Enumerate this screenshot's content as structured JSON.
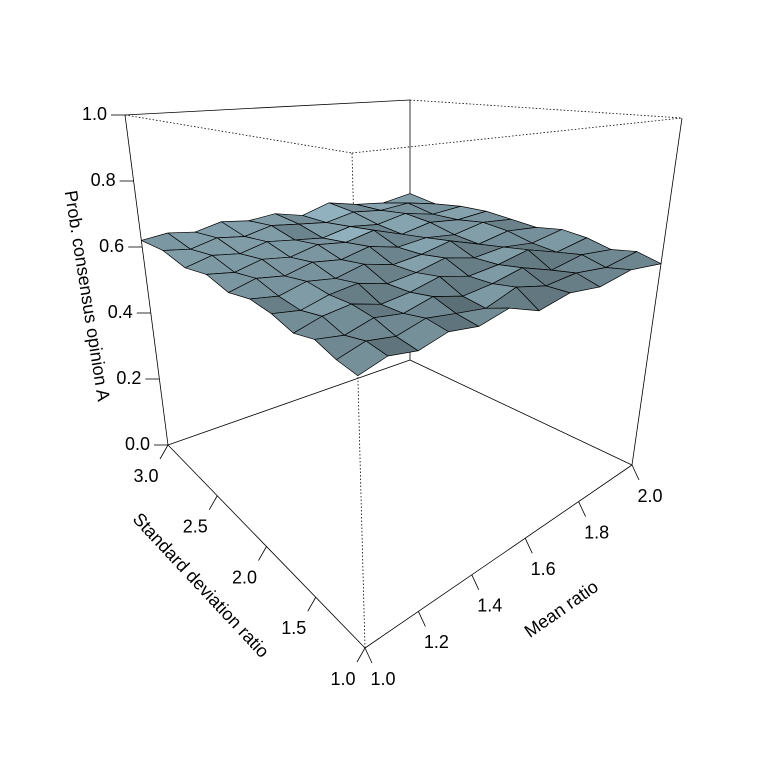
{
  "chart_data": {
    "type": "surface",
    "xlabel": "Mean ratio",
    "ylabel": "Standard deviation ratio",
    "zlabel": "Prob. consensus opinion A",
    "x": [
      1.0,
      1.1,
      1.2,
      1.3,
      1.4,
      1.5,
      1.6,
      1.7,
      1.8,
      1.9,
      2.0
    ],
    "y": [
      1.0,
      1.2,
      1.4,
      1.6,
      1.8,
      2.0,
      2.2,
      2.4,
      2.6,
      2.8,
      3.0
    ],
    "z": [
      [
        0.55,
        0.57,
        0.56,
        0.58,
        0.57,
        0.59,
        0.56,
        0.58,
        0.57,
        0.59,
        0.58
      ],
      [
        0.56,
        0.58,
        0.57,
        0.59,
        0.58,
        0.57,
        0.6,
        0.58,
        0.59,
        0.58,
        0.6
      ],
      [
        0.58,
        0.57,
        0.59,
        0.58,
        0.6,
        0.58,
        0.59,
        0.61,
        0.58,
        0.6,
        0.59
      ],
      [
        0.57,
        0.59,
        0.6,
        0.58,
        0.59,
        0.61,
        0.59,
        0.6,
        0.62,
        0.59,
        0.61
      ],
      [
        0.59,
        0.58,
        0.6,
        0.61,
        0.59,
        0.6,
        0.62,
        0.6,
        0.61,
        0.6,
        0.62
      ],
      [
        0.6,
        0.59,
        0.61,
        0.6,
        0.62,
        0.6,
        0.61,
        0.63,
        0.6,
        0.62,
        0.61
      ],
      [
        0.59,
        0.61,
        0.6,
        0.62,
        0.61,
        0.63,
        0.61,
        0.62,
        0.61,
        0.63,
        0.62
      ],
      [
        0.61,
        0.6,
        0.62,
        0.61,
        0.63,
        0.62,
        0.64,
        0.61,
        0.63,
        0.62,
        0.63
      ],
      [
        0.6,
        0.62,
        0.61,
        0.63,
        0.62,
        0.61,
        0.63,
        0.62,
        0.64,
        0.62,
        0.63
      ],
      [
        0.62,
        0.61,
        0.63,
        0.62,
        0.64,
        0.63,
        0.62,
        0.64,
        0.63,
        0.64,
        0.62
      ],
      [
        0.62,
        0.63,
        0.62,
        0.64,
        0.63,
        0.64,
        0.62,
        0.65,
        0.63,
        0.62,
        0.64
      ]
    ],
    "color": "#7f9ba6",
    "xlim": [
      1,
      2
    ],
    "ylim": [
      1,
      3
    ],
    "zlim": [
      0,
      1
    ],
    "xticks": [
      {
        "value": 1.0,
        "label": "1.0"
      },
      1.2,
      1.4,
      1.6,
      1.8,
      {
        "value": 2.0,
        "label": "2.0"
      }
    ],
    "yticks": [
      {
        "value": 1.0,
        "label": "1.0"
      },
      1.5,
      {
        "value": 2.0,
        "label": "2.0"
      },
      2.5,
      {
        "value": 3.0,
        "label": "3.0"
      }
    ],
    "zticks": [
      {
        "value": 0.0,
        "label": "0.0"
      },
      0.2,
      0.4,
      0.6,
      0.8,
      {
        "value": 1.0,
        "label": "1.0"
      }
    ]
  }
}
